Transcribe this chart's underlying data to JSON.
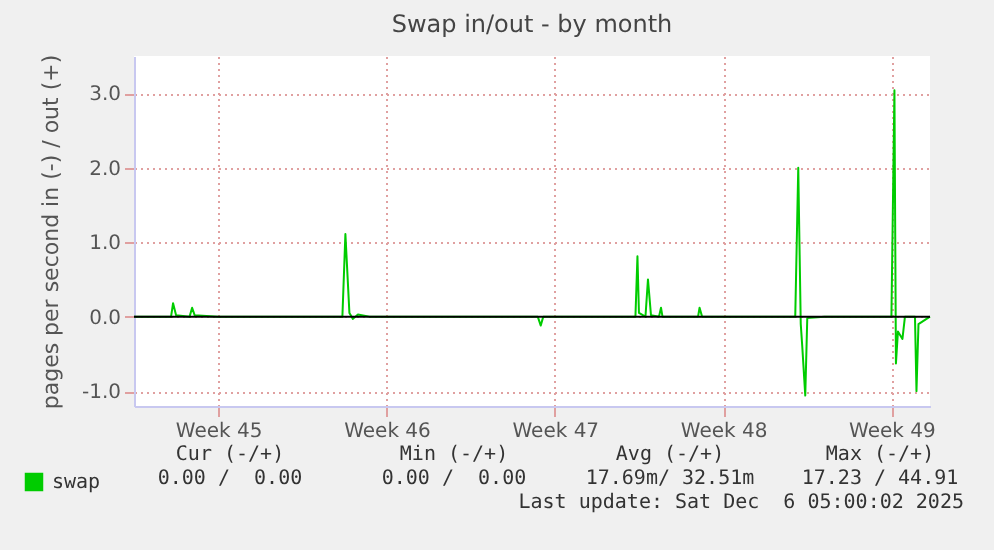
{
  "chart_data": {
    "type": "line",
    "title": "Swap in/out - by month",
    "ylabel": "pages per second in (-) / out (+)",
    "xlim": [
      "2025-11-03T00:00",
      "2025-12-06T02:30"
    ],
    "xticks": [
      {
        "value": "2025-11-06T12:00",
        "label": "Week 45"
      },
      {
        "value": "2025-11-13T12:00",
        "label": "Week 46"
      },
      {
        "value": "2025-11-20T12:00",
        "label": "Week 47"
      },
      {
        "value": "2025-11-27T12:00",
        "label": "Week 48"
      },
      {
        "value": "2025-12-04T12:00",
        "label": "Week 49"
      }
    ],
    "ylim": [
      -1.2,
      3.5
    ],
    "yticks": [
      {
        "value": -1,
        "label": "-1.0"
      },
      {
        "value": 0,
        "label": "0.0"
      },
      {
        "value": 1,
        "label": "1.0"
      },
      {
        "value": 2,
        "label": "2.0"
      },
      {
        "value": 3,
        "label": "3.0"
      }
    ],
    "grid": true,
    "legend": "bottom left",
    "ref_lines": [
      {
        "axis": "y",
        "value": 0,
        "color": "#000000"
      }
    ],
    "series": [
      {
        "name": "swap",
        "color": "#00cc00",
        "x": [
          "2025-11-03T00:00",
          "2025-11-04T13:00",
          "2025-11-04T15:00",
          "2025-11-04T18:00",
          "2025-11-05T07:30",
          "2025-11-05T10:00",
          "2025-11-05T12:30",
          "2025-11-06T12:00",
          "2025-11-11T16:00",
          "2025-11-11T19:00",
          "2025-11-11T23:00",
          "2025-11-12T02:30",
          "2025-11-12T07:30",
          "2025-11-12T19:00",
          "2025-11-19T19:00",
          "2025-11-19T22:00",
          "2025-11-20T00:30",
          "2025-11-23T20:30",
          "2025-11-23T22:30",
          "2025-11-24T00:00",
          "2025-11-24T06:30",
          "2025-11-24T09:00",
          "2025-11-24T12:00",
          "2025-11-24T20:00",
          "2025-11-24T22:00",
          "2025-11-24T23:30",
          "2025-11-26T11:00",
          "2025-11-26T12:30",
          "2025-11-26T15:00",
          "2025-11-30T12:00",
          "2025-11-30T15:00",
          "2025-11-30T17:30",
          "2025-11-30T19:00",
          "2025-11-30T22:00",
          "2025-12-01T00:00",
          "2025-12-01T17:00",
          "2025-12-04T12:00",
          "2025-12-04T15:00",
          "2025-12-04T16:30",
          "2025-12-04T18:30",
          "2025-12-04T23:00",
          "2025-12-05T01:30",
          "2025-12-05T11:30",
          "2025-12-05T13:00",
          "2025-12-05T15:00",
          "2025-12-06T02:30"
        ],
        "values": [
          0,
          0,
          0.18,
          0.02,
          0,
          0.12,
          0.02,
          0,
          0,
          1.11,
          0.05,
          -0.03,
          0.03,
          0,
          0,
          -0.12,
          0,
          0,
          0.81,
          0.05,
          0,
          0.5,
          0.02,
          0,
          0.12,
          0,
          0,
          0.12,
          0,
          0,
          2.0,
          -0.1,
          -0.4,
          -1.06,
          -0.02,
          0,
          0,
          3.04,
          -0.63,
          -0.2,
          -0.3,
          0,
          0,
          -1.0,
          -0.1,
          0
        ]
      }
    ],
    "annotations": [
      "Cur (-/+)",
      "Min (-/+)",
      "Avg (-/+)",
      "Max (-/+)",
      "0.00 /  0.00",
      "0.00 /  0.00",
      "17.69m/ 32.51m",
      "17.23 / 44.91",
      "Last update: Sat Dec  6 05:00:02 2025"
    ]
  }
}
